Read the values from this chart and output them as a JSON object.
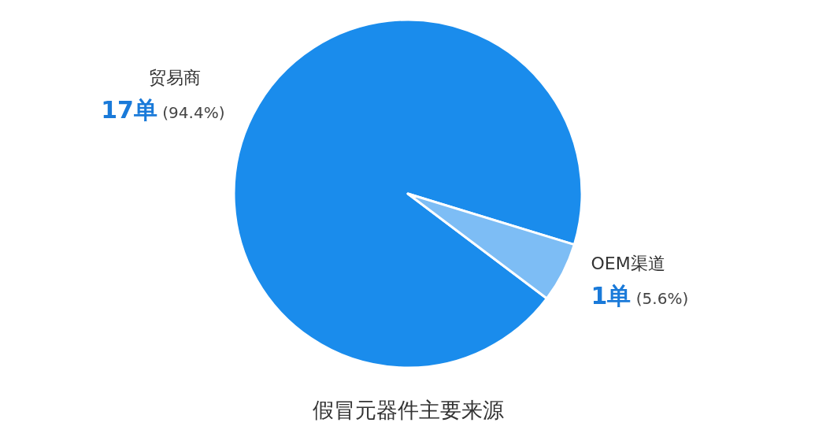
{
  "chart_data": {
    "type": "pie",
    "title": "假冒元器件主要来源",
    "categories": [
      "贸易商",
      "OEM渠道"
    ],
    "values": [
      17,
      1
    ],
    "colors": [
      "#1a8cec",
      "#7dbdf5"
    ],
    "value_labels": [
      "17单 (94.4%)",
      "1单 (5.6%)"
    ]
  }
}
